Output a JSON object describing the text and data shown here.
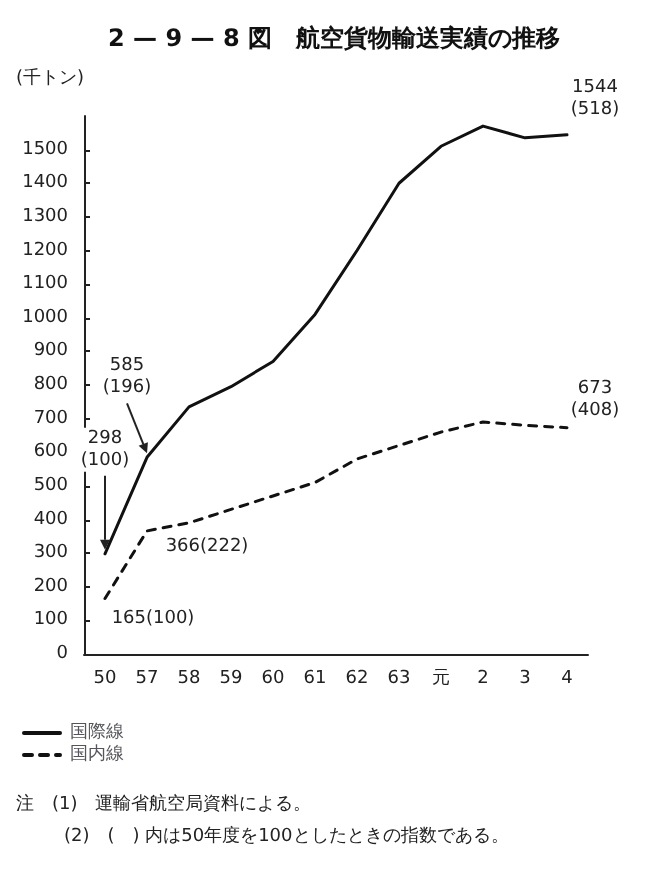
{
  "chart_data": {
    "type": "line",
    "title": "2 — 9 — 8 図　航空貨物輸送実績の推移",
    "ylabel": "(千トン)",
    "categories": [
      "50",
      "57",
      "58",
      "59",
      "60",
      "61",
      "62",
      "63",
      "元",
      "2",
      "3",
      "4"
    ],
    "series": [
      {
        "name": "国際線",
        "color": "#111111",
        "line_style": "solid",
        "values": [
          298,
          585,
          735,
          795,
          870,
          1010,
          1200,
          1400,
          1510,
          1570,
          1535,
          1544
        ]
      },
      {
        "name": "国内線",
        "color": "#111111",
        "line_style": "dashed",
        "values": [
          165,
          366,
          390,
          430,
          470,
          510,
          580,
          620,
          660,
          690,
          680,
          673
        ]
      }
    ],
    "ylim": [
      0,
      1600
    ],
    "yticks": [
      0,
      100,
      200,
      300,
      400,
      500,
      600,
      700,
      800,
      900,
      1000,
      1100,
      1200,
      1300,
      1400,
      1500
    ],
    "grid": false,
    "legend": "bottom left",
    "marker": "none",
    "annotations": [
      {
        "text": "298\n(100)",
        "x": "50",
        "y": 298
      },
      {
        "text": "585\n(196)",
        "x": "57",
        "y": 585
      },
      {
        "text": "1544\n(518)",
        "x": "4",
        "y": 1544
      },
      {
        "text": "673\n(408)",
        "x": "4",
        "y": 673
      },
      {
        "text": "366(222)",
        "x": "57",
        "y": 366
      },
      {
        "text": "165(100)",
        "x": "50",
        "y": 165
      },
      "注　(1)　運輸省航空局資料による。",
      "(2)　(　) 内は50年度を100としたときの指数である。"
    ]
  }
}
